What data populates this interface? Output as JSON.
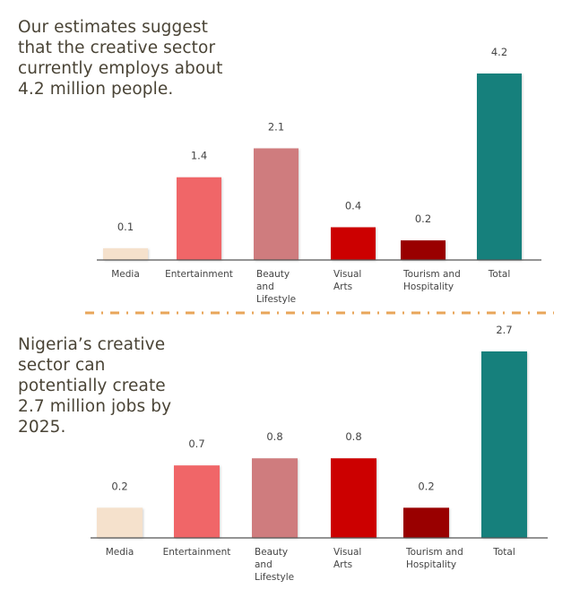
{
  "headlines": {
    "top": "Our estimates suggest that the creative sector currently employs about 4.2 million people.",
    "bottom": "Nigeria’s creative sector can potentially create 2.7 million jobs by 2025."
  },
  "separator": {
    "style": "dash-dot",
    "color": "#e8a65a"
  },
  "chart_data": [
    {
      "type": "bar",
      "title": "Our estimates suggest that the creative sector currently employs about 4.2 million people.",
      "unit": "million jobs",
      "categories": [
        {
          "lines": [
            "Media"
          ],
          "align": "center"
        },
        {
          "lines": [
            "Entertainment"
          ],
          "align": "center"
        },
        {
          "lines": [
            "Beauty",
            "and",
            "Lifestyle"
          ],
          "align": "left"
        },
        {
          "lines": [
            "Visual",
            "Arts"
          ],
          "align": "left"
        },
        {
          "lines": [
            "Tourism and",
            "Hospitality"
          ],
          "align": "left"
        },
        {
          "lines": [
            "Total"
          ],
          "align": "center"
        }
      ],
      "values": [
        0.1,
        1.4,
        2.1,
        0.4,
        0.2,
        4.2
      ],
      "labels": [
        "0.1",
        "1.4",
        "2.1",
        "0.4",
        "0.2",
        "4.2"
      ],
      "colors": [
        "#f5e1cc",
        "#f06668",
        "#cf7b7e",
        "#cc0000",
        "#990000",
        "#14807c"
      ],
      "xlabel": "",
      "ylabel": "",
      "grid": false,
      "legend": "none"
    },
    {
      "type": "bar",
      "title": "Nigeria’s creative sector can potentially create 2.7 million jobs by 2025.",
      "unit": "million jobs",
      "categories": [
        {
          "lines": [
            "Media"
          ],
          "align": "center"
        },
        {
          "lines": [
            "Entertainment"
          ],
          "align": "center"
        },
        {
          "lines": [
            "Beauty",
            "and",
            "Lifestyle"
          ],
          "align": "left"
        },
        {
          "lines": [
            "Visual",
            "Arts"
          ],
          "align": "left"
        },
        {
          "lines": [
            "Tourism and",
            "Hospitality"
          ],
          "align": "left"
        },
        {
          "lines": [
            "Total"
          ],
          "align": "center"
        }
      ],
      "values": [
        0.2,
        0.7,
        0.8,
        0.8,
        0.2,
        2.7
      ],
      "labels": [
        "0.2",
        "0.7",
        "0.8",
        "0.8",
        "0.2",
        "2.7"
      ],
      "colors": [
        "#f5e1cc",
        "#f06668",
        "#cf7b7e",
        "#cc0000",
        "#990000",
        "#14807c"
      ],
      "xlabel": "",
      "ylabel": "",
      "grid": false,
      "legend": "none"
    }
  ]
}
